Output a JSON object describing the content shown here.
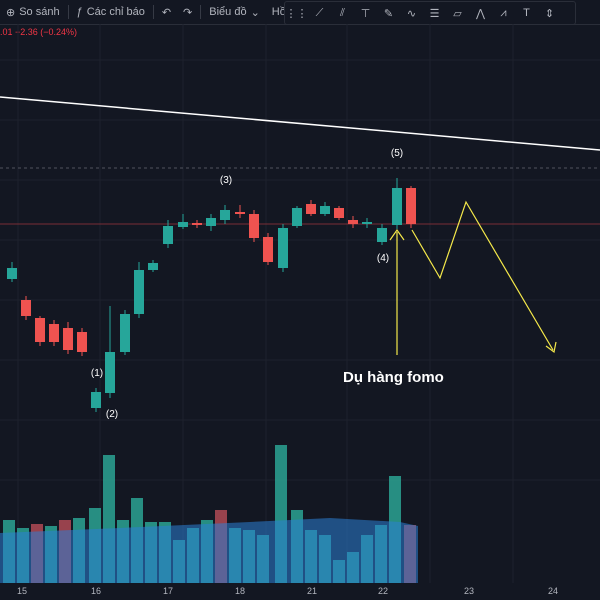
{
  "toolbar": {
    "compare_label": "So sánh",
    "indicators_label": "Các chỉ báo",
    "chart_label": "Biểu đồ",
    "profile_label": "Hồ sơ",
    "icons": [
      "dots-grid-icon",
      "trend-line-icon",
      "pitchfork-icon",
      "horizontal-ray-icon",
      "brush-icon",
      "zigzag-icon",
      "fib-retracement-icon",
      "gann-box-icon",
      "pattern-icon",
      "elliott-wave-icon",
      "text-icon",
      "long-position-icon"
    ]
  },
  "quote": {
    "text": ".01  −2.36 (−0.24%)"
  },
  "chart_data": {
    "type": "candlestick",
    "x_labels": [
      "15",
      "16",
      "17",
      "18",
      "21",
      "22",
      "23",
      "24"
    ],
    "point_labels": [
      "(1)",
      "(2)",
      "(3)",
      "(4)",
      "(5)"
    ],
    "annotation": "Dụ hàng fomo",
    "colors": {
      "up": "#26a69a",
      "down": "#ef5350",
      "trend": "#ffffff",
      "arrow": "#f5e94a",
      "volume_up": "#2ba393",
      "volume_down": "#b04a55",
      "volume_ma": "#2b7fd6"
    }
  }
}
